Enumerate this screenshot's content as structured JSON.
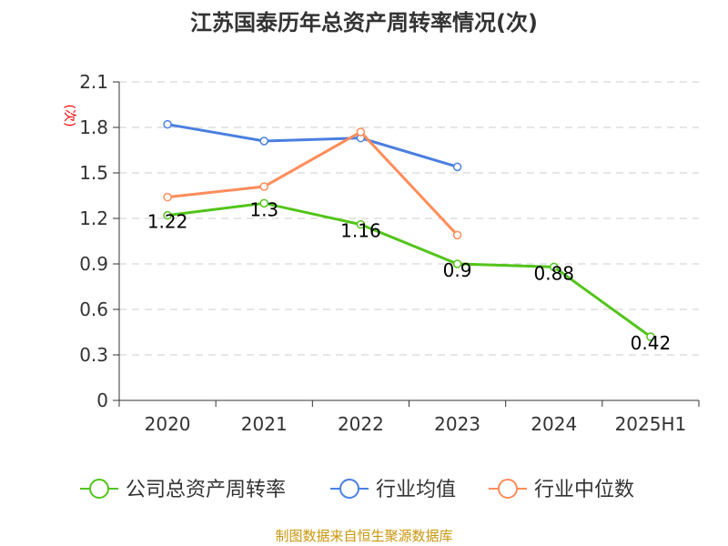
{
  "chart_data": {
    "type": "line",
    "title": "江苏国泰历年总资产周转率情况(次)",
    "ylabel": "(次)",
    "categories": [
      "2020",
      "2021",
      "2022",
      "2023",
      "2024",
      "2025H1"
    ],
    "ylim": [
      0,
      2.1
    ],
    "yticks": [
      "0",
      "0.3",
      "0.6",
      "0.9",
      "1.2",
      "1.5",
      "1.8",
      "2.1"
    ],
    "grid": true,
    "legend_placement": "bottom",
    "series": [
      {
        "name": "公司总资产周转率",
        "color": "#52c41a",
        "values": [
          1.22,
          1.3,
          1.16,
          0.9,
          0.88,
          0.42
        ],
        "labels": [
          "1.22",
          "1.3",
          "1.16",
          "0.9",
          "0.88",
          "0.42"
        ]
      },
      {
        "name": "行业均值",
        "color": "#4a7fe0",
        "values": [
          1.82,
          1.71,
          1.73,
          1.54,
          null,
          null
        ]
      },
      {
        "name": "行业中位数",
        "color": "#ff8c5a",
        "values": [
          1.34,
          1.41,
          1.77,
          1.09,
          null,
          null
        ]
      }
    ]
  },
  "footer": "制图数据来自恒生聚源数据库",
  "footer_color": "#c8960c"
}
